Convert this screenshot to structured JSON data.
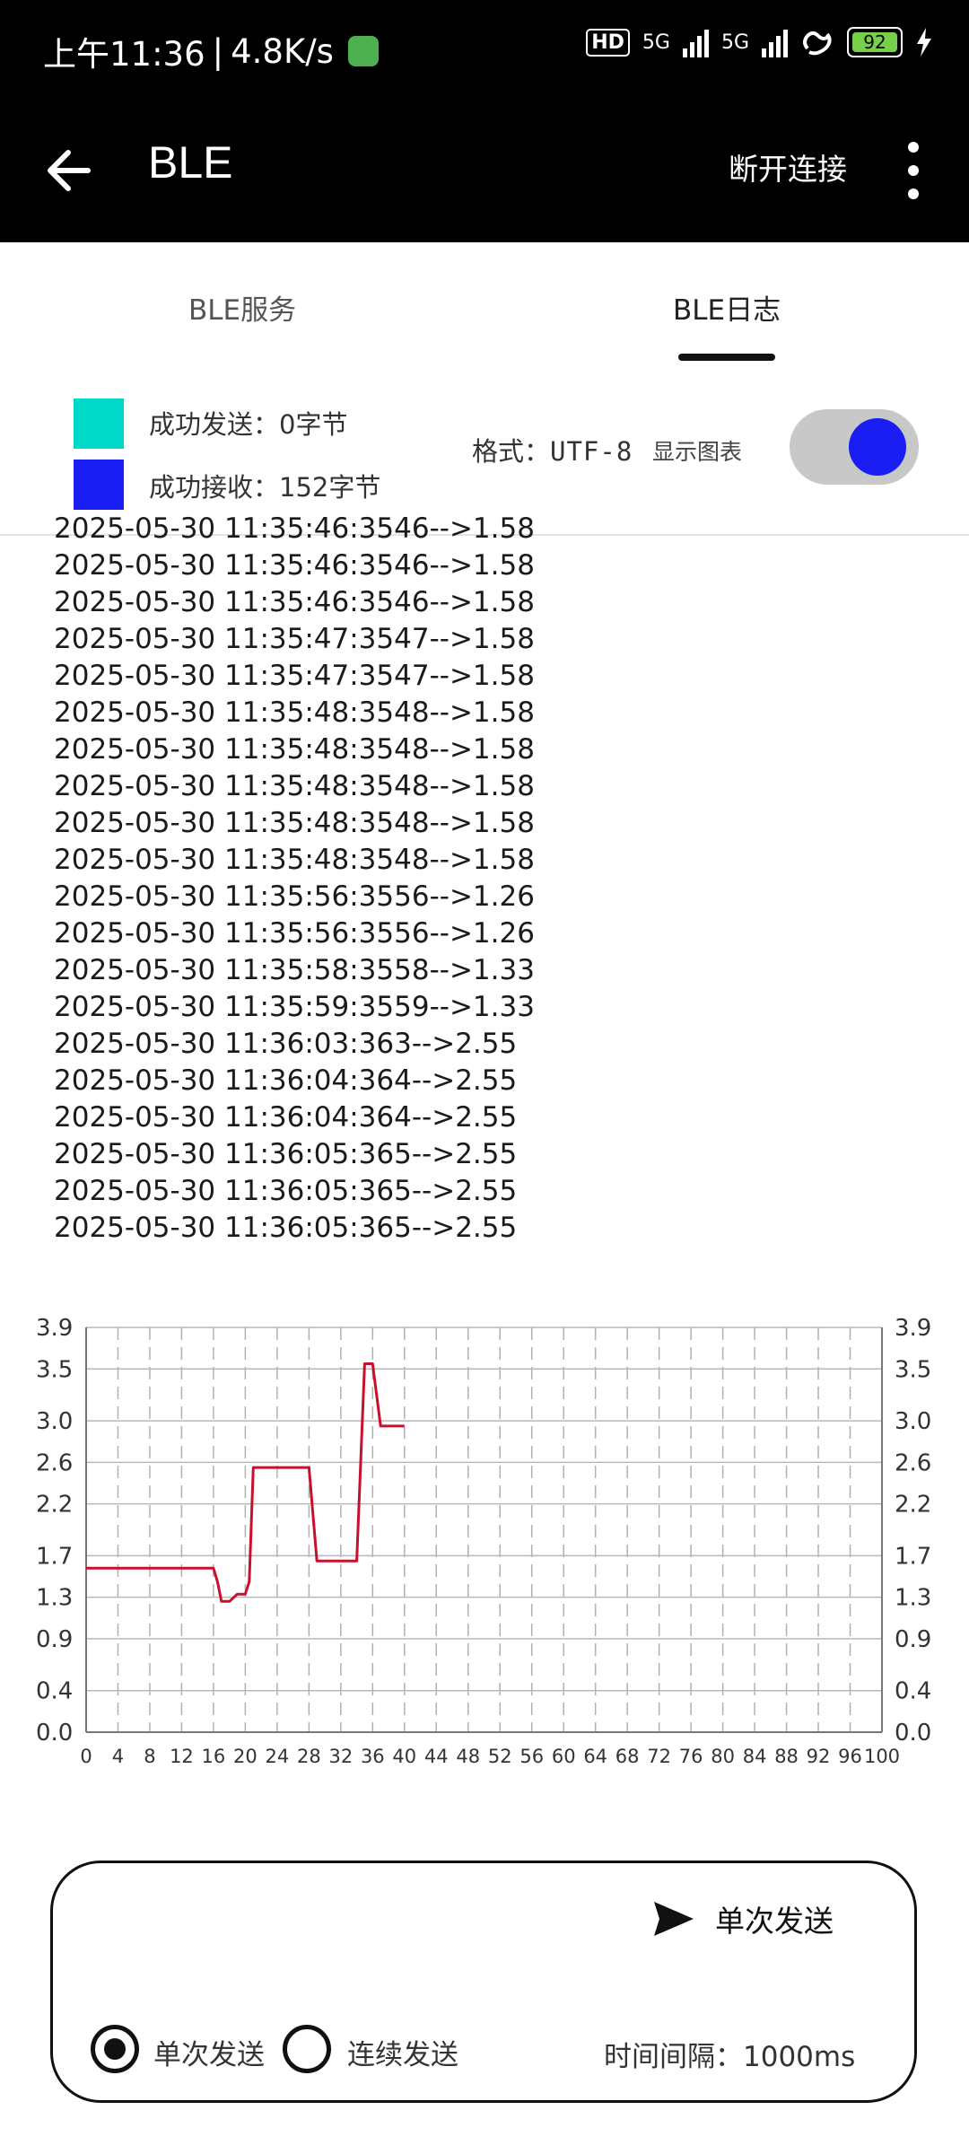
{
  "status_bar": {
    "time": "上午11:36",
    "separator": "|",
    "speed": "4.8K/s",
    "hd": "HD",
    "net1": "5G",
    "net2": "5G",
    "battery": "92",
    "colors": {
      "app_icon": "#4caf50",
      "battery": "#76d04a"
    }
  },
  "app_bar": {
    "title": "BLE",
    "disconnect_label": "断开连接",
    "icons": {
      "back": "arrow-left",
      "menu": "more-vert"
    }
  },
  "tabs": [
    {
      "label": "BLE服务",
      "active": false
    },
    {
      "label": "BLE日志",
      "active": true
    }
  ],
  "stats": {
    "sent_label": "成功发送：",
    "sent_value": "0字节",
    "received_label": "成功接收：",
    "received_value": "152字节",
    "sent_color": "#00d9c8",
    "received_color": "#1a1ef5",
    "format_label": "格式：",
    "format_value": "UTF-8",
    "show_chart_label": "显示图表",
    "show_chart_on": true
  },
  "log_lines": [
    "2025-05-30 11:35:46:3546-->1.58",
    "2025-05-30 11:35:46:3546-->1.58",
    "2025-05-30 11:35:46:3546-->1.58",
    "2025-05-30 11:35:47:3547-->1.58",
    "2025-05-30 11:35:47:3547-->1.58",
    "2025-05-30 11:35:48:3548-->1.58",
    "2025-05-30 11:35:48:3548-->1.58",
    "2025-05-30 11:35:48:3548-->1.58",
    "2025-05-30 11:35:48:3548-->1.58",
    "2025-05-30 11:35:48:3548-->1.58",
    "2025-05-30 11:35:56:3556-->1.26",
    "2025-05-30 11:35:56:3556-->1.26",
    "2025-05-30 11:35:58:3558-->1.33",
    "2025-05-30 11:35:59:3559-->1.33",
    "2025-05-30 11:36:03:363-->2.55",
    "2025-05-30 11:36:04:364-->2.55",
    "2025-05-30 11:36:04:364-->2.55",
    "2025-05-30 11:36:05:365-->2.55",
    "2025-05-30 11:36:05:365-->2.55",
    "2025-05-30 11:36:05:365-->2.55"
  ],
  "chart_data": {
    "type": "line",
    "title": "",
    "xlabel": "",
    "ylabel": "",
    "xlim": [
      0,
      100
    ],
    "ylim": [
      0,
      3.9
    ],
    "x_ticks": [
      0,
      4,
      8,
      12,
      16,
      20,
      24,
      28,
      32,
      36,
      40,
      44,
      48,
      52,
      56,
      60,
      64,
      68,
      72,
      76,
      80,
      84,
      88,
      92,
      96,
      100
    ],
    "y_ticks": [
      "0.0",
      "0.4",
      "0.9",
      "1.3",
      "1.7",
      "2.2",
      "2.6",
      "3.0",
      "3.5",
      "3.9"
    ],
    "grid": true,
    "series": [
      {
        "color": "#c8102e",
        "x": [
          0,
          16,
          16.5,
          17,
          18,
          19,
          20,
          20.5,
          21,
          28,
          29,
          34,
          35,
          36,
          37,
          40
        ],
        "y": [
          1.58,
          1.58,
          1.45,
          1.26,
          1.26,
          1.33,
          1.33,
          1.45,
          2.55,
          2.55,
          1.65,
          1.65,
          3.55,
          3.55,
          2.95,
          2.95
        ]
      }
    ]
  },
  "send_panel": {
    "send_label": "单次发送",
    "mode_single": "单次发送",
    "mode_continuous": "连续发送",
    "selected_mode": "single",
    "interval_label": "时间间隔：",
    "interval_value": "1000ms"
  }
}
